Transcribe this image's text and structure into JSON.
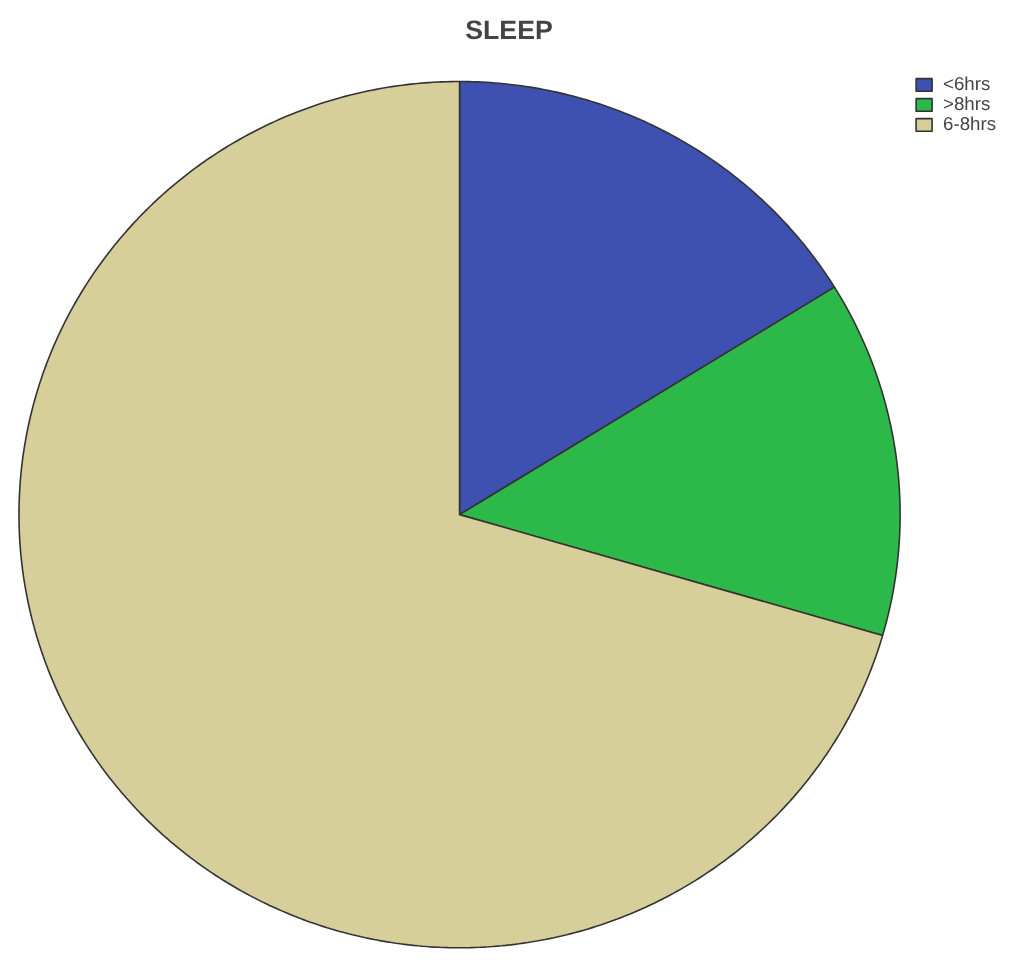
{
  "chart_data": {
    "type": "pie",
    "title": "SLEEP",
    "categories": [
      "<6hrs",
      ">8hrs",
      "6-8hrs"
    ],
    "values": [
      16.2,
      13.3,
      70.5
    ],
    "colors": [
      "#3f51b0",
      "#2db84a",
      "#d6cf9a"
    ],
    "legend": "top right"
  }
}
